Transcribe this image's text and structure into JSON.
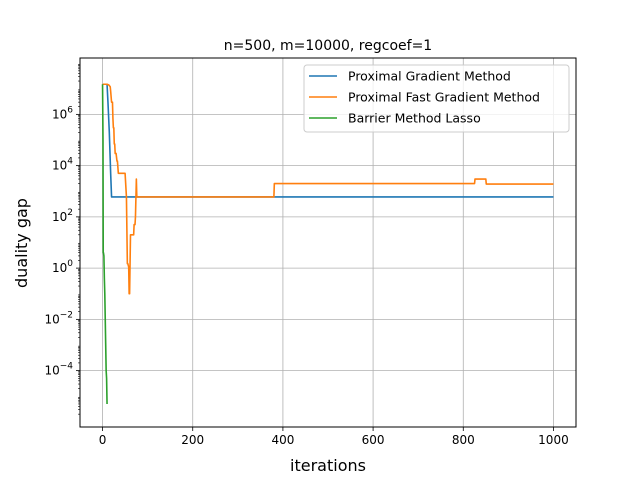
{
  "chart_data": {
    "type": "line",
    "title": "n=500, m=10000, regcoef=1",
    "xlabel": "iterations",
    "ylabel": "duality gap",
    "xlim": [
      -50,
      1050
    ],
    "ylim_log10": [
      -6.2,
      8.2
    ],
    "yscale": "log",
    "grid": true,
    "legend_position": "top-right",
    "xticks": [
      "0",
      "200",
      "400",
      "600",
      "800",
      "1000"
    ],
    "xtick_values": [
      0,
      200,
      400,
      600,
      800,
      1000
    ],
    "yticks": [
      {
        "base": "10",
        "exp": "−4",
        "log10": -4
      },
      {
        "base": "10",
        "exp": "−2",
        "log10": -2
      },
      {
        "base": "10",
        "exp": "0",
        "log10": 0
      },
      {
        "base": "10",
        "exp": "2",
        "log10": 2
      },
      {
        "base": "10",
        "exp": "4",
        "log10": 4
      },
      {
        "base": "10",
        "exp": "6",
        "log10": 6
      }
    ],
    "series": [
      {
        "name": "Proximal Gradient Method",
        "color": "#1f77b4",
        "x": [
          0,
          10,
          12,
          15,
          18,
          20,
          1000
        ],
        "y": [
          15000000,
          15000000,
          3000000,
          200000,
          5000,
          600,
          600
        ]
      },
      {
        "name": "Proximal Fast Gradient Method",
        "color": "#ff7f0e",
        "x": [
          0,
          5,
          10,
          14,
          17,
          18,
          20,
          22,
          23,
          24,
          25,
          26,
          27,
          28,
          30,
          32,
          33,
          35,
          38,
          40,
          42,
          45,
          48,
          50,
          53,
          55,
          56,
          58,
          59,
          60,
          62,
          65,
          67,
          69,
          70,
          72,
          73,
          75,
          76,
          80,
          100,
          200,
          300,
          380,
          381,
          400,
          500,
          600,
          700,
          800,
          825,
          826,
          845,
          850,
          851,
          900,
          1000
        ],
        "y": [
          15000000,
          15000000,
          15000000,
          14000000,
          12000000,
          8000000,
          3000000,
          3000000,
          700000,
          300000,
          300000,
          70000,
          70000,
          30000,
          30000,
          15000,
          15000,
          5000,
          5000,
          5000,
          5000,
          5000,
          5000,
          5000,
          600,
          1.5,
          1.5,
          1.1,
          0.1,
          0.1,
          20,
          20,
          20,
          20,
          50,
          50,
          100,
          3000,
          600,
          600,
          600,
          600,
          600,
          600,
          2000,
          2000,
          2000,
          2000,
          2000,
          2000,
          2000,
          3000,
          3000,
          3000,
          1900,
          1900,
          1900
        ]
      },
      {
        "name": "Barrier Method Lasso",
        "color": "#2ca02c",
        "x": [
          0,
          1,
          1.5,
          2,
          3,
          4,
          5,
          6,
          7,
          8,
          9,
          10
        ],
        "y": [
          15000000,
          100000,
          4,
          4,
          3,
          0.4,
          0.1,
          0.01,
          0.001,
          0.0001,
          5e-05,
          5e-06
        ]
      }
    ]
  }
}
